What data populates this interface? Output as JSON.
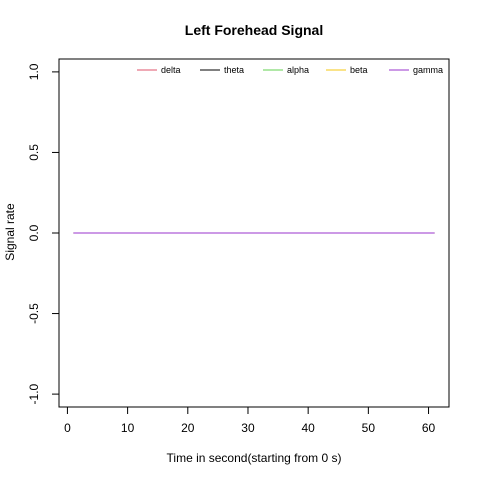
{
  "chart_data": {
    "type": "line",
    "title": "Left Forehead Signal",
    "xlabel": "Time in second(starting from 0 s)",
    "ylabel": "Signal rate",
    "xlim": [
      -1.4,
      63.4
    ],
    "ylim": [
      -1.08,
      1.08
    ],
    "xticks": [
      0,
      10,
      20,
      30,
      40,
      50,
      60
    ],
    "yticks": [
      -1.0,
      -0.5,
      0.0,
      0.5,
      1.0
    ],
    "ytick_labels": [
      "-1.0",
      "-0.5",
      "0.0",
      "0.5",
      "1.0"
    ],
    "x": [
      1,
      61
    ],
    "series": [
      {
        "name": "delta",
        "color": "#df536b",
        "values": [
          0,
          0
        ]
      },
      {
        "name": "theta",
        "color": "#000000",
        "values": [
          0,
          0
        ]
      },
      {
        "name": "alpha",
        "color": "#61d04f",
        "values": [
          0,
          0
        ]
      },
      {
        "name": "beta",
        "color": "#f5c710",
        "values": [
          0,
          0
        ]
      },
      {
        "name": "gamma",
        "color": "#9933cc",
        "values": [
          0,
          0
        ]
      }
    ],
    "legend_position": "top-right",
    "grid": false
  }
}
